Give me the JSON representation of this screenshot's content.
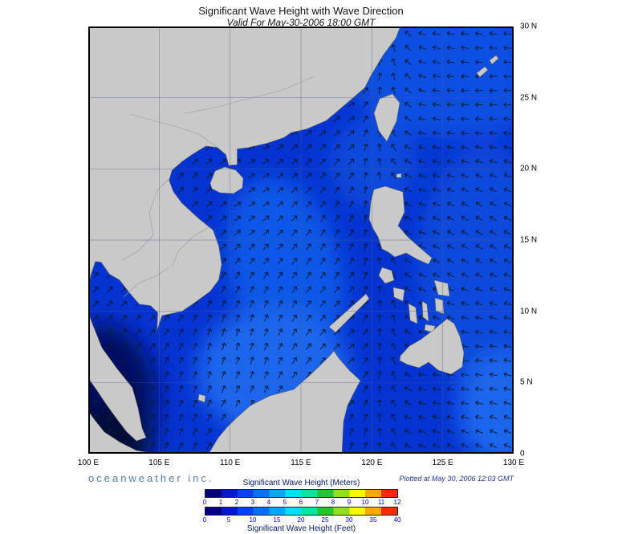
{
  "title": "Significant Wave Height with Wave Direction",
  "subtitle": "Valid For May-30-2006 18:00 GMT",
  "branding": "oceanweather inc.",
  "plotted_at": "Plotted at May 30, 2006 12:03 GMT",
  "axes": {
    "lon_ticks": [
      "100 E",
      "105 E",
      "110 E",
      "115 E",
      "120 E",
      "125 E",
      "130 E"
    ],
    "lat_ticks": [
      "30 N",
      "25 N",
      "20 N",
      "15 N",
      "10 N",
      "5 N",
      "0"
    ]
  },
  "legend": {
    "meters_label": "Significant Wave Height (Meters)",
    "feet_label": "Significant Wave Height (Feet)",
    "meters_ticks": [
      "0",
      "1",
      "2",
      "3",
      "4",
      "5",
      "6",
      "7",
      "8",
      "9",
      "10",
      "11",
      "12"
    ],
    "feet_ticks": [
      "0",
      "5",
      "10",
      "15",
      "20",
      "25",
      "30",
      "35",
      "40"
    ],
    "colors": [
      "#000080",
      "#0018d4",
      "#0040ff",
      "#0070ff",
      "#00a8ff",
      "#00e0ff",
      "#00e8a0",
      "#20c830",
      "#90e020",
      "#f8f800",
      "#ffa800",
      "#ff2800"
    ]
  },
  "chart_data": {
    "type": "heatmap",
    "title": "Significant Wave Height with Wave Direction",
    "valid_time": "Valid For May-30-2006 18:00 GMT",
    "region": {
      "lon_range": [
        "100 E",
        "130 E"
      ],
      "lat_range": [
        "0",
        "30 N"
      ]
    },
    "colorbar_meters": {
      "min": 0,
      "max": 12,
      "ticks": [
        0,
        1,
        2,
        3,
        4,
        5,
        6,
        7,
        8,
        9,
        10,
        11,
        12
      ]
    },
    "colorbar_feet": {
      "min": 0,
      "max": 40,
      "ticks": [
        0,
        5,
        10,
        15,
        20,
        25,
        30,
        35,
        40
      ]
    },
    "overlay": "wave direction arrows"
  }
}
